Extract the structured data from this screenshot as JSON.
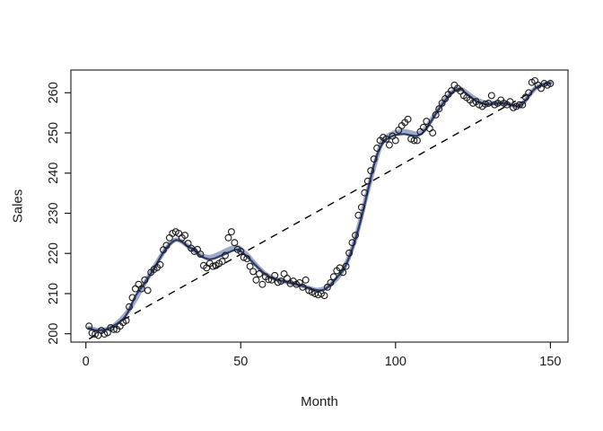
{
  "figure": {
    "background": "#ffffff",
    "border_color": "#2a2a2a"
  },
  "chart_data": {
    "type": "scatter",
    "title": "",
    "xlabel": "Month",
    "ylabel": "Sales",
    "x_ticks": [
      0,
      50,
      100,
      150
    ],
    "y_ticks": [
      200,
      210,
      220,
      230,
      240,
      250,
      260
    ],
    "xlim": [
      -4.84,
      155.68
    ],
    "ylim": [
      197.92,
      265.66
    ],
    "grid": false,
    "legend": "none",
    "marker": {
      "shape": "open-circle",
      "color": "#1a1a1a",
      "radius": 3.4,
      "stroke_width": 1.1
    },
    "axis_color": "#1a1a1a",
    "tick_label_size": 14.5,
    "axis_label_size": 15,
    "points": [
      [
        1,
        201.9
      ],
      [
        2,
        200.2
      ],
      [
        3,
        199.9
      ],
      [
        4,
        199.6
      ],
      [
        5,
        200.8
      ],
      [
        6,
        199.9
      ],
      [
        7,
        200.3
      ],
      [
        8,
        201.5
      ],
      [
        9,
        201.1
      ],
      [
        10,
        201.1
      ],
      [
        11,
        201.9
      ],
      [
        12,
        202.8
      ],
      [
        13,
        203.3
      ],
      [
        14,
        206.7
      ],
      [
        15,
        209.0
      ],
      [
        16,
        211.2
      ],
      [
        17,
        212.3
      ],
      [
        18,
        211.2
      ],
      [
        19,
        213.4
      ],
      [
        20,
        210.8
      ],
      [
        21,
        215.3
      ],
      [
        22,
        216.0
      ],
      [
        23,
        216.5
      ],
      [
        24,
        217.2
      ],
      [
        25,
        220.9
      ],
      [
        26,
        222.0
      ],
      [
        27,
        223.9
      ],
      [
        28,
        225.0
      ],
      [
        29,
        225.4
      ],
      [
        30,
        225.0
      ],
      [
        31,
        223.9
      ],
      [
        32,
        224.5
      ],
      [
        33,
        222.5
      ],
      [
        34,
        221.3
      ],
      [
        35,
        220.5
      ],
      [
        36,
        221.0
      ],
      [
        37,
        219.8
      ],
      [
        38,
        217.0
      ],
      [
        39,
        216.4
      ],
      [
        40,
        217.5
      ],
      [
        41,
        216.8
      ],
      [
        42,
        217.0
      ],
      [
        43,
        217.5
      ],
      [
        44,
        218.0
      ],
      [
        45,
        219.5
      ],
      [
        46,
        223.9
      ],
      [
        47,
        225.4
      ],
      [
        48,
        222.7
      ],
      [
        49,
        221.0
      ],
      [
        50,
        220.5
      ],
      [
        51,
        219.0
      ],
      [
        52,
        218.7
      ],
      [
        53,
        216.8
      ],
      [
        54,
        215.5
      ],
      [
        55,
        213.4
      ],
      [
        56,
        214.9
      ],
      [
        57,
        212.3
      ],
      [
        58,
        214.2
      ],
      [
        59,
        213.5
      ],
      [
        60,
        213.4
      ],
      [
        61,
        214.5
      ],
      [
        62,
        212.8
      ],
      [
        63,
        213.1
      ],
      [
        64,
        214.9
      ],
      [
        65,
        213.8
      ],
      [
        66,
        212.5
      ],
      [
        67,
        213.1
      ],
      [
        68,
        212.3
      ],
      [
        69,
        212.7
      ],
      [
        70,
        211.6
      ],
      [
        71,
        213.4
      ],
      [
        72,
        210.8
      ],
      [
        73,
        210.4
      ],
      [
        74,
        210.0
      ],
      [
        75,
        209.7
      ],
      [
        76,
        210.0
      ],
      [
        77,
        209.5
      ],
      [
        78,
        211.6
      ],
      [
        79,
        212.7
      ],
      [
        80,
        214.2
      ],
      [
        81,
        215.7
      ],
      [
        82,
        216.4
      ],
      [
        83,
        215.3
      ],
      [
        84,
        216.8
      ],
      [
        85,
        220.1
      ],
      [
        86,
        222.7
      ],
      [
        87,
        224.5
      ],
      [
        88,
        229.5
      ],
      [
        89,
        231.5
      ],
      [
        90,
        235.1
      ],
      [
        91,
        238.0
      ],
      [
        92,
        240.6
      ],
      [
        93,
        243.5
      ],
      [
        94,
        246.2
      ],
      [
        95,
        248.1
      ],
      [
        96,
        248.9
      ],
      [
        97,
        248.5
      ],
      [
        98,
        247.0
      ],
      [
        99,
        249.2
      ],
      [
        100,
        248.1
      ],
      [
        101,
        250.7
      ],
      [
        102,
        251.8
      ],
      [
        103,
        252.6
      ],
      [
        104,
        253.4
      ],
      [
        105,
        248.5
      ],
      [
        106,
        248.1
      ],
      [
        107,
        248.1
      ],
      [
        108,
        250.3
      ],
      [
        109,
        251.4
      ],
      [
        110,
        252.9
      ],
      [
        111,
        251.1
      ],
      [
        112,
        250.0
      ],
      [
        113,
        254.5
      ],
      [
        114,
        256.0
      ],
      [
        115,
        257.4
      ],
      [
        116,
        258.5
      ],
      [
        117,
        259.6
      ],
      [
        118,
        260.5
      ],
      [
        119,
        261.9
      ],
      [
        120,
        261.1
      ],
      [
        121,
        260.4
      ],
      [
        122,
        259.3
      ],
      [
        123,
        258.8
      ],
      [
        124,
        258.2
      ],
      [
        125,
        257.4
      ],
      [
        126,
        257.8
      ],
      [
        127,
        257.0
      ],
      [
        128,
        256.6
      ],
      [
        129,
        257.2
      ],
      [
        130,
        257.4
      ],
      [
        131,
        259.3
      ],
      [
        132,
        257.0
      ],
      [
        133,
        257.4
      ],
      [
        134,
        258.2
      ],
      [
        135,
        257.4
      ],
      [
        136,
        257.0
      ],
      [
        137,
        257.8
      ],
      [
        138,
        256.3
      ],
      [
        139,
        256.6
      ],
      [
        140,
        257.0
      ],
      [
        141,
        257.0
      ],
      [
        142,
        258.9
      ],
      [
        143,
        260.0
      ],
      [
        144,
        262.6
      ],
      [
        145,
        263.0
      ],
      [
        146,
        261.9
      ],
      [
        147,
        261.1
      ],
      [
        148,
        262.3
      ],
      [
        149,
        261.9
      ],
      [
        150,
        262.3
      ]
    ],
    "smooth_band": {
      "name": "wide-light-smooth",
      "color": "#9fabc9",
      "width": 5,
      "points": [
        [
          1,
          201.4
        ],
        [
          5,
          200.9
        ],
        [
          9,
          202.0
        ],
        [
          14,
          206.0
        ],
        [
          19,
          212.6
        ],
        [
          25,
          220.2
        ],
        [
          29,
          223.4
        ],
        [
          33,
          221.8
        ],
        [
          37,
          219.6
        ],
        [
          40,
          219.1
        ],
        [
          43,
          219.9
        ],
        [
          46,
          221.0
        ],
        [
          49,
          221.6
        ],
        [
          52,
          219.7
        ],
        [
          55,
          217.1
        ],
        [
          58,
          214.9
        ],
        [
          62,
          213.4
        ],
        [
          66,
          212.7
        ],
        [
          70,
          211.9
        ],
        [
          75,
          210.9
        ],
        [
          79,
          212.3
        ],
        [
          83,
          215.9
        ],
        [
          87,
          223.6
        ],
        [
          91,
          235.6
        ],
        [
          95,
          246.6
        ],
        [
          97,
          249.0
        ],
        [
          99,
          249.9
        ],
        [
          101,
          250.3
        ],
        [
          103,
          250.4
        ],
        [
          105,
          250.1
        ],
        [
          107,
          249.8
        ],
        [
          109,
          250.6
        ],
        [
          111,
          252.6
        ],
        [
          113,
          255.0
        ],
        [
          115,
          257.2
        ],
        [
          117,
          259.2
        ],
        [
          119,
          260.6
        ],
        [
          121,
          261.0
        ],
        [
          123,
          260.0
        ],
        [
          125,
          258.9
        ],
        [
          127,
          258.0
        ],
        [
          129,
          257.5
        ],
        [
          131,
          257.4
        ],
        [
          133,
          257.4
        ],
        [
          135,
          257.4
        ],
        [
          137,
          257.1
        ],
        [
          139,
          256.8
        ],
        [
          141,
          257.3
        ],
        [
          143,
          259.2
        ],
        [
          145,
          261.0
        ],
        [
          147,
          261.9
        ],
        [
          150,
          262.4
        ]
      ]
    },
    "smooth_line": {
      "name": "dark-smooth",
      "color": "#303d6b",
      "width": 2.3,
      "points": [
        [
          1,
          201.4
        ],
        [
          3,
          200.9
        ],
        [
          5,
          200.9
        ],
        [
          7,
          201.2
        ],
        [
          9,
          202.0
        ],
        [
          12,
          203.6
        ],
        [
          14,
          206.0
        ],
        [
          16,
          209.4
        ],
        [
          19,
          212.6
        ],
        [
          22,
          216.2
        ],
        [
          25,
          220.2
        ],
        [
          27,
          222.2
        ],
        [
          29,
          223.3
        ],
        [
          31,
          222.9
        ],
        [
          33,
          221.7
        ],
        [
          35,
          220.9
        ],
        [
          37,
          219.4
        ],
        [
          40,
          218.5
        ],
        [
          43,
          219.2
        ],
        [
          46,
          220.2
        ],
        [
          49,
          220.9
        ],
        [
          52,
          219.2
        ],
        [
          55,
          216.9
        ],
        [
          58,
          214.8
        ],
        [
          61,
          213.6
        ],
        [
          64,
          213.0
        ],
        [
          67,
          212.5
        ],
        [
          70,
          211.9
        ],
        [
          73,
          211.1
        ],
        [
          75,
          210.8
        ],
        [
          77,
          211.0
        ],
        [
          79,
          212.2
        ],
        [
          81,
          214.0
        ],
        [
          83,
          215.8
        ],
        [
          85,
          219.0
        ],
        [
          87,
          223.5
        ],
        [
          89,
          229.0
        ],
        [
          91,
          235.5
        ],
        [
          93,
          242.0
        ],
        [
          95,
          246.3
        ],
        [
          97,
          248.3
        ],
        [
          99,
          249.2
        ],
        [
          101,
          249.6
        ],
        [
          103,
          249.7
        ],
        [
          105,
          249.4
        ],
        [
          107,
          249.3
        ],
        [
          109,
          250.2
        ],
        [
          111,
          252.3
        ],
        [
          113,
          254.8
        ],
        [
          115,
          257.0
        ],
        [
          117,
          259.0
        ],
        [
          119,
          260.5
        ],
        [
          121,
          260.9
        ],
        [
          123,
          259.7
        ],
        [
          125,
          258.5
        ],
        [
          127,
          257.6
        ],
        [
          129,
          257.2
        ],
        [
          131,
          257.2
        ],
        [
          133,
          257.3
        ],
        [
          135,
          257.3
        ],
        [
          137,
          257.0
        ],
        [
          139,
          256.7
        ],
        [
          141,
          257.2
        ],
        [
          143,
          259.2
        ],
        [
          145,
          261.0
        ],
        [
          147,
          261.9
        ],
        [
          149,
          262.3
        ],
        [
          150,
          262.4
        ]
      ]
    },
    "trend_line": {
      "name": "dashed-linear-trend",
      "style": "dashed",
      "color": "#000000",
      "width": 1.4,
      "dash": "8 6.5",
      "x": [
        1,
        150
      ],
      "y": [
        198.7,
        262.8
      ]
    }
  }
}
